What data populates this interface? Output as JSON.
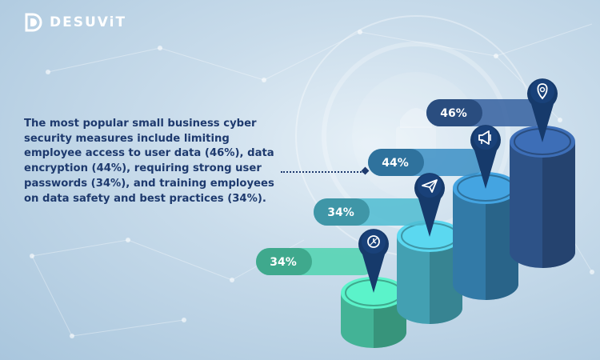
{
  "brand": {
    "name": "DESUViT",
    "mark": "D"
  },
  "description": "The most popular small business cyber security measures include limiting employee access to user data (46%), data encryption (44%), requiring strong user passwords (34%), and training employees on data safety and best practices (34%).",
  "colors": {
    "text": "#1e3a6e",
    "step1": "#4fd3b0",
    "step2": "#4fbcd1",
    "step3": "#3b8fc4",
    "step4": "#35609f",
    "pin": "#163a6b"
  },
  "chart_data": {
    "type": "bar",
    "categories": [
      "training employees on data safety and best practices",
      "requiring strong user passwords",
      "data encryption",
      "limiting employee access to user data"
    ],
    "values": [
      34,
      34,
      44,
      46
    ],
    "value_labels": [
      "34%",
      "34%",
      "44%",
      "46%"
    ],
    "icons": [
      "clock-icon",
      "paper-plane-icon",
      "megaphone-icon",
      "location-pin-icon"
    ],
    "unit": "%"
  }
}
